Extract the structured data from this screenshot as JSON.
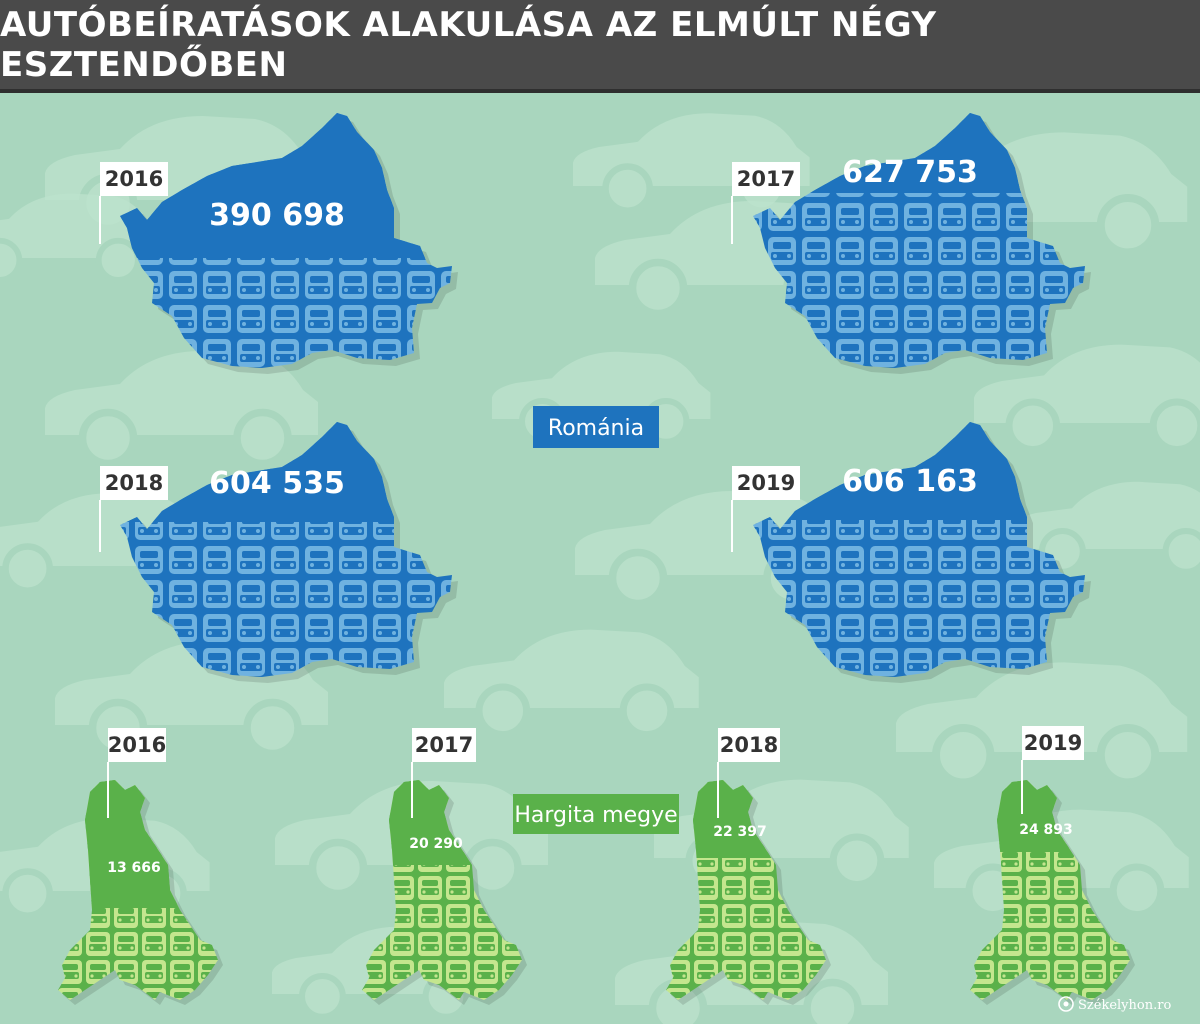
{
  "title": "AUTÓBEÍRATÁSOK ALAKULÁSA AZ ELMÚLT NÉGY ESZTENDŐBEN",
  "colors": {
    "background": "#a9d6be",
    "title_bar": "#4a4a4a",
    "romania_fill": "#1e73be",
    "romania_pattern": "#6fb2e0",
    "hargita_fill": "#5ab14a",
    "hargita_pattern": "#c4e68e"
  },
  "romania": {
    "label": "Románia",
    "maps": [
      {
        "year": "2016",
        "value": "390 698"
      },
      {
        "year": "2017",
        "value": "627 753"
      },
      {
        "year": "2018",
        "value": "604 535"
      },
      {
        "year": "2019",
        "value": "606 163"
      }
    ]
  },
  "hargita": {
    "label": "Hargita megye",
    "maps": [
      {
        "year": "2016",
        "value": "13 666"
      },
      {
        "year": "2017",
        "value": "20 290"
      },
      {
        "year": "2018",
        "value": "22 397"
      },
      {
        "year": "2019",
        "value": "24 893"
      }
    ]
  },
  "credit": "Székelyhon.ro",
  "icons": [
    "car-icon",
    "map-pin-icon"
  ]
}
